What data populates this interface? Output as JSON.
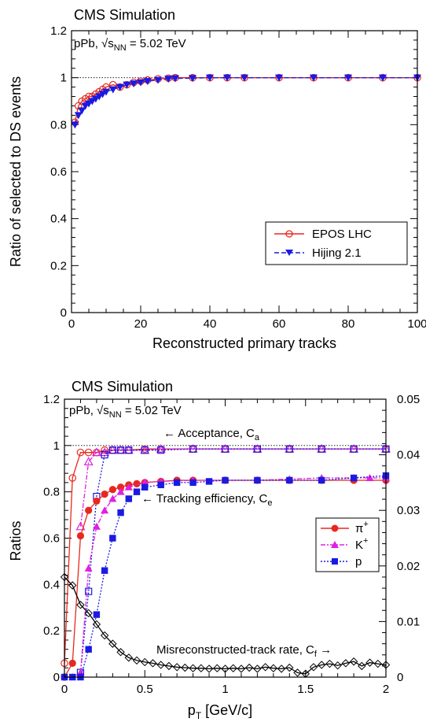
{
  "chart_data": [
    {
      "type": "line",
      "title": "CMS Simulation",
      "subtitle": "pPb, √s_NN = 5.02 TeV",
      "subtitle_main": "pPb, ",
      "subtitle_sqrt": "√s",
      "subtitle_sub": "NN",
      "subtitle_tail": " = 5.02 TeV",
      "xlabel": "Reconstructed primary tracks",
      "ylabel": "Ratio of selected to DS events",
      "xlim": [
        0,
        100
      ],
      "ylim": [
        0,
        1.2
      ],
      "xticks": [
        0,
        20,
        40,
        60,
        80,
        100
      ],
      "xtick_labels": [
        "0",
        "20",
        "40",
        "60",
        "80",
        "100"
      ],
      "yticks": [
        0,
        0.2,
        0.4,
        0.6,
        0.8,
        1,
        1.2
      ],
      "ytick_labels": [
        "0",
        "0.2",
        "0.4",
        "0.6",
        "0.8",
        "1",
        "1.2"
      ],
      "reference_line": 1,
      "grid": false,
      "legend_position": "bottom-right",
      "series": [
        {
          "name": "EPOS LHC",
          "color": "#e8281e",
          "marker": "open-circle",
          "style": "solid",
          "x": [
            1,
            2,
            3,
            4,
            5,
            6,
            7,
            8,
            9,
            10,
            12,
            14,
            16,
            18,
            20,
            22,
            25,
            28,
            30,
            35,
            40,
            45,
            50,
            60,
            70,
            80,
            90,
            100
          ],
          "y": [
            0.81,
            0.88,
            0.9,
            0.91,
            0.92,
            0.92,
            0.93,
            0.94,
            0.95,
            0.96,
            0.97,
            0.96,
            0.97,
            0.98,
            0.985,
            0.99,
            0.995,
            0.998,
            1.0,
            1.0,
            1.0,
            1.0,
            1.0,
            1.0,
            1.0,
            1.0,
            1.0,
            1.0
          ]
        },
        {
          "name": "Hijing 2.1",
          "color": "#1a1ae0",
          "marker": "filled-triangle-down",
          "style": "dashed",
          "x": [
            1,
            2,
            3,
            4,
            5,
            6,
            7,
            8,
            9,
            10,
            12,
            14,
            16,
            18,
            20,
            22,
            25,
            28,
            30,
            35,
            40,
            45,
            50,
            60,
            70,
            80,
            90,
            100
          ],
          "y": [
            0.8,
            0.84,
            0.86,
            0.88,
            0.89,
            0.9,
            0.91,
            0.92,
            0.93,
            0.94,
            0.95,
            0.96,
            0.97,
            0.975,
            0.98,
            0.985,
            0.99,
            0.995,
            0.997,
            0.998,
            1.0,
            1.0,
            1.0,
            1.0,
            1.0,
            1.0,
            1.0,
            1.0
          ]
        }
      ]
    },
    {
      "type": "line",
      "title": "CMS Simulation",
      "subtitle": "pPb, √s_NN = 5.02 TeV",
      "subtitle_main": "pPb, ",
      "subtitle_sqrt": "√s",
      "subtitle_sub": "NN",
      "subtitle_tail": " = 5.02 TeV",
      "xlabel_main": "p",
      "xlabel_sub": "T",
      "xlabel_tail": " [GeV/c]",
      "ylabel": "Ratios",
      "xlim": [
        0,
        2
      ],
      "ylim": [
        0,
        1.2
      ],
      "y2lim": [
        0,
        0.05
      ],
      "xticks": [
        0,
        0.5,
        1,
        1.5,
        2
      ],
      "xtick_labels": [
        "0",
        "0.5",
        "1",
        "1.5",
        "2"
      ],
      "yticks": [
        0,
        0.2,
        0.4,
        0.6,
        0.8,
        1,
        1.2
      ],
      "ytick_labels": [
        "0",
        "0.2",
        "0.4",
        "0.6",
        "0.8",
        "1",
        "1.2"
      ],
      "y2ticks": [
        0,
        0.01,
        0.02,
        0.03,
        0.04,
        0.05
      ],
      "y2tick_labels": [
        "0",
        "0.01",
        "0.02",
        "0.03",
        "0.04",
        "0.05"
      ],
      "reference_line": 1,
      "grid": false,
      "legend_position": "right-middle",
      "annotations": {
        "acceptance_text": "← Acceptance, C",
        "acceptance_sub": "a",
        "tracking_text": "← Tracking efficiency, C",
        "tracking_sub": "e",
        "misreco_text": "Misreconstructed-track rate, C",
        "misreco_sub": "f",
        "misreco_arrow": " →"
      },
      "legend": [
        {
          "label": "π",
          "sup": "+",
          "color": "#e8281e",
          "marker": "filled-circle",
          "style": "solid"
        },
        {
          "label": "K",
          "sup": "+",
          "color": "#e020e0",
          "marker": "filled-triangle-up",
          "style": "dashdot"
        },
        {
          "label": "p",
          "sup": "",
          "color": "#1a1ae0",
          "marker": "filled-square",
          "style": "dotted"
        }
      ],
      "acceptance": [
        {
          "name": "π+ acceptance",
          "color": "#e8281e",
          "marker": "open-circle",
          "x": [
            0.0,
            0.05,
            0.1,
            0.15,
            0.2,
            0.25,
            0.3,
            0.35,
            0.4,
            0.5,
            0.6,
            0.8,
            1.0,
            1.2,
            1.4,
            1.6,
            1.8,
            2.0
          ],
          "y": [
            0.06,
            0.86,
            0.97,
            0.97,
            0.97,
            0.98,
            0.98,
            0.98,
            0.98,
            0.985,
            0.985,
            0.985,
            0.985,
            0.985,
            0.985,
            0.985,
            0.985,
            0.985
          ]
        },
        {
          "name": "K+ acceptance",
          "color": "#e020e0",
          "marker": "open-triangle-up",
          "x": [
            0.1,
            0.15,
            0.2,
            0.25,
            0.3,
            0.35,
            0.4,
            0.5,
            0.6,
            0.8,
            1.0,
            1.2,
            1.4,
            1.6,
            1.8,
            2.0
          ],
          "y": [
            0.65,
            0.93,
            0.97,
            0.97,
            0.98,
            0.98,
            0.98,
            0.98,
            0.985,
            0.985,
            0.985,
            0.985,
            0.985,
            0.985,
            0.985,
            0.985
          ]
        },
        {
          "name": "p acceptance",
          "color": "#1a1ae0",
          "marker": "open-square",
          "x": [
            0.1,
            0.15,
            0.2,
            0.25,
            0.3,
            0.35,
            0.4,
            0.5,
            0.6,
            0.8,
            1.0,
            1.2,
            1.4,
            1.6,
            1.8,
            2.0
          ],
          "y": [
            0.02,
            0.37,
            0.78,
            0.96,
            0.98,
            0.98,
            0.98,
            0.98,
            0.98,
            0.985,
            0.985,
            0.985,
            0.985,
            0.985,
            0.985,
            0.985
          ]
        }
      ],
      "efficiency": [
        {
          "name": "π+",
          "color": "#e8281e",
          "marker": "filled-circle",
          "x": [
            0.0,
            0.05,
            0.1,
            0.15,
            0.2,
            0.25,
            0.3,
            0.35,
            0.4,
            0.45,
            0.5,
            0.6,
            0.7,
            0.8,
            1.0,
            1.2,
            1.4,
            1.6,
            1.8,
            2.0
          ],
          "y": [
            0.0,
            0.06,
            0.61,
            0.72,
            0.76,
            0.79,
            0.81,
            0.82,
            0.83,
            0.835,
            0.84,
            0.845,
            0.85,
            0.85,
            0.85,
            0.85,
            0.85,
            0.85,
            0.85,
            0.85
          ]
        },
        {
          "name": "K+",
          "color": "#e020e0",
          "marker": "filled-triangle-up",
          "x": [
            0.05,
            0.1,
            0.15,
            0.2,
            0.25,
            0.3,
            0.35,
            0.4,
            0.5,
            0.6,
            0.8,
            1.0,
            1.2,
            1.4,
            1.6,
            1.8,
            1.9,
            2.0
          ],
          "y": [
            0.0,
            0.02,
            0.47,
            0.65,
            0.72,
            0.77,
            0.8,
            0.82,
            0.84,
            0.845,
            0.85,
            0.85,
            0.85,
            0.855,
            0.86,
            0.86,
            0.86,
            0.86
          ]
        },
        {
          "name": "p",
          "color": "#1a1ae0",
          "marker": "filled-square",
          "x": [
            0.0,
            0.05,
            0.1,
            0.15,
            0.2,
            0.25,
            0.3,
            0.35,
            0.4,
            0.45,
            0.5,
            0.6,
            0.7,
            0.8,
            0.9,
            1.0,
            1.2,
            1.4,
            1.6,
            1.8,
            2.0
          ],
          "y": [
            0.0,
            0.0,
            0.0,
            0.12,
            0.27,
            0.46,
            0.6,
            0.71,
            0.77,
            0.8,
            0.82,
            0.83,
            0.84,
            0.84,
            0.845,
            0.85,
            0.85,
            0.85,
            0.85,
            0.86,
            0.87
          ]
        }
      ],
      "misreconstructed": {
        "name": "Misreconstructed-track rate",
        "color": "#000000",
        "marker": "open-diamond",
        "axis": "right",
        "x": [
          0.0,
          0.05,
          0.1,
          0.15,
          0.2,
          0.25,
          0.3,
          0.35,
          0.4,
          0.45,
          0.5,
          0.55,
          0.6,
          0.65,
          0.7,
          0.75,
          0.8,
          0.85,
          0.9,
          0.95,
          1.0,
          1.05,
          1.1,
          1.15,
          1.2,
          1.25,
          1.3,
          1.35,
          1.4,
          1.45,
          1.5,
          1.55,
          1.6,
          1.65,
          1.7,
          1.75,
          1.8,
          1.85,
          1.9,
          1.95,
          2.0
        ],
        "y": [
          0.018,
          0.0165,
          0.013,
          0.0115,
          0.0095,
          0.0075,
          0.006,
          0.0045,
          0.0035,
          0.003,
          0.0027,
          0.0025,
          0.0022,
          0.002,
          0.0018,
          0.0017,
          0.0016,
          0.0016,
          0.0015,
          0.0016,
          0.0015,
          0.0016,
          0.0015,
          0.0017,
          0.0015,
          0.0018,
          0.0016,
          0.0015,
          0.0017,
          0.0008,
          0.0006,
          0.0018,
          0.0022,
          0.0024,
          0.0021,
          0.0025,
          0.0028,
          0.002,
          0.0026,
          0.0024,
          0.0022
        ]
      }
    }
  ]
}
